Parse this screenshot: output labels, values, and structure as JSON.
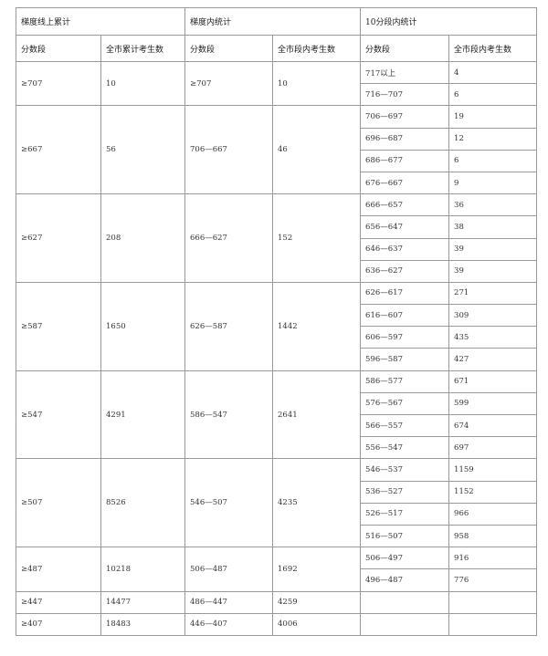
{
  "header": {
    "groups": [
      "梯度线上累计",
      "梯度内统计",
      "10分段内统计"
    ],
    "columns": [
      "分数段",
      "全市累计考生数",
      "分数段",
      "全市段内考生数",
      "分数段",
      "全市段内考生数"
    ]
  },
  "rows": [
    {
      "cum_range": "≥707",
      "cum_count": "10",
      "grad_range": "≥707",
      "grad_count": "10",
      "sub": [
        [
          "717以上",
          "4"
        ],
        [
          "716—707",
          "6"
        ]
      ]
    },
    {
      "cum_range": "≥667",
      "cum_count": "56",
      "grad_range": "706—667",
      "grad_count": "46",
      "sub": [
        [
          "706—697",
          "19"
        ],
        [
          "696—687",
          "12"
        ],
        [
          "686—677",
          "6"
        ],
        [
          "676—667",
          "9"
        ]
      ]
    },
    {
      "cum_range": "≥627",
      "cum_count": "208",
      "grad_range": "666—627",
      "grad_count": "152",
      "sub": [
        [
          "666—657",
          "36"
        ],
        [
          "656—647",
          "38"
        ],
        [
          "646—637",
          "39"
        ],
        [
          "636—627",
          "39"
        ]
      ]
    },
    {
      "cum_range": "≥587",
      "cum_count": "1650",
      "grad_range": "626—587",
      "grad_count": "1442",
      "sub": [
        [
          "626—617",
          "271"
        ],
        [
          "616—607",
          "309"
        ],
        [
          "606—597",
          "435"
        ],
        [
          "596—587",
          "427"
        ]
      ]
    },
    {
      "cum_range": "≥547",
      "cum_count": "4291",
      "grad_range": "586—547",
      "grad_count": "2641",
      "sub": [
        [
          "586—577",
          "671"
        ],
        [
          "576—567",
          "599"
        ],
        [
          "566—557",
          "674"
        ],
        [
          "556—547",
          "697"
        ]
      ]
    },
    {
      "cum_range": "≥507",
      "cum_count": "8526",
      "grad_range": "546—507",
      "grad_count": "4235",
      "sub": [
        [
          "546—537",
          "1159"
        ],
        [
          "536—527",
          "1152"
        ],
        [
          "526—517",
          "966"
        ],
        [
          "516—507",
          "958"
        ]
      ]
    },
    {
      "cum_range": "≥487",
      "cum_count": "10218",
      "grad_range": "506—487",
      "grad_count": "1692",
      "sub": [
        [
          "506—497",
          "916"
        ],
        [
          "496—487",
          "776"
        ]
      ]
    },
    {
      "cum_range": "≥447",
      "cum_count": "14477",
      "grad_range": "486—447",
      "grad_count": "4259",
      "sub": [
        [
          "",
          ""
        ]
      ]
    },
    {
      "cum_range": "≥407",
      "cum_count": "18483",
      "grad_range": "446—407",
      "grad_count": "4006",
      "sub": [
        [
          "",
          ""
        ]
      ]
    }
  ]
}
